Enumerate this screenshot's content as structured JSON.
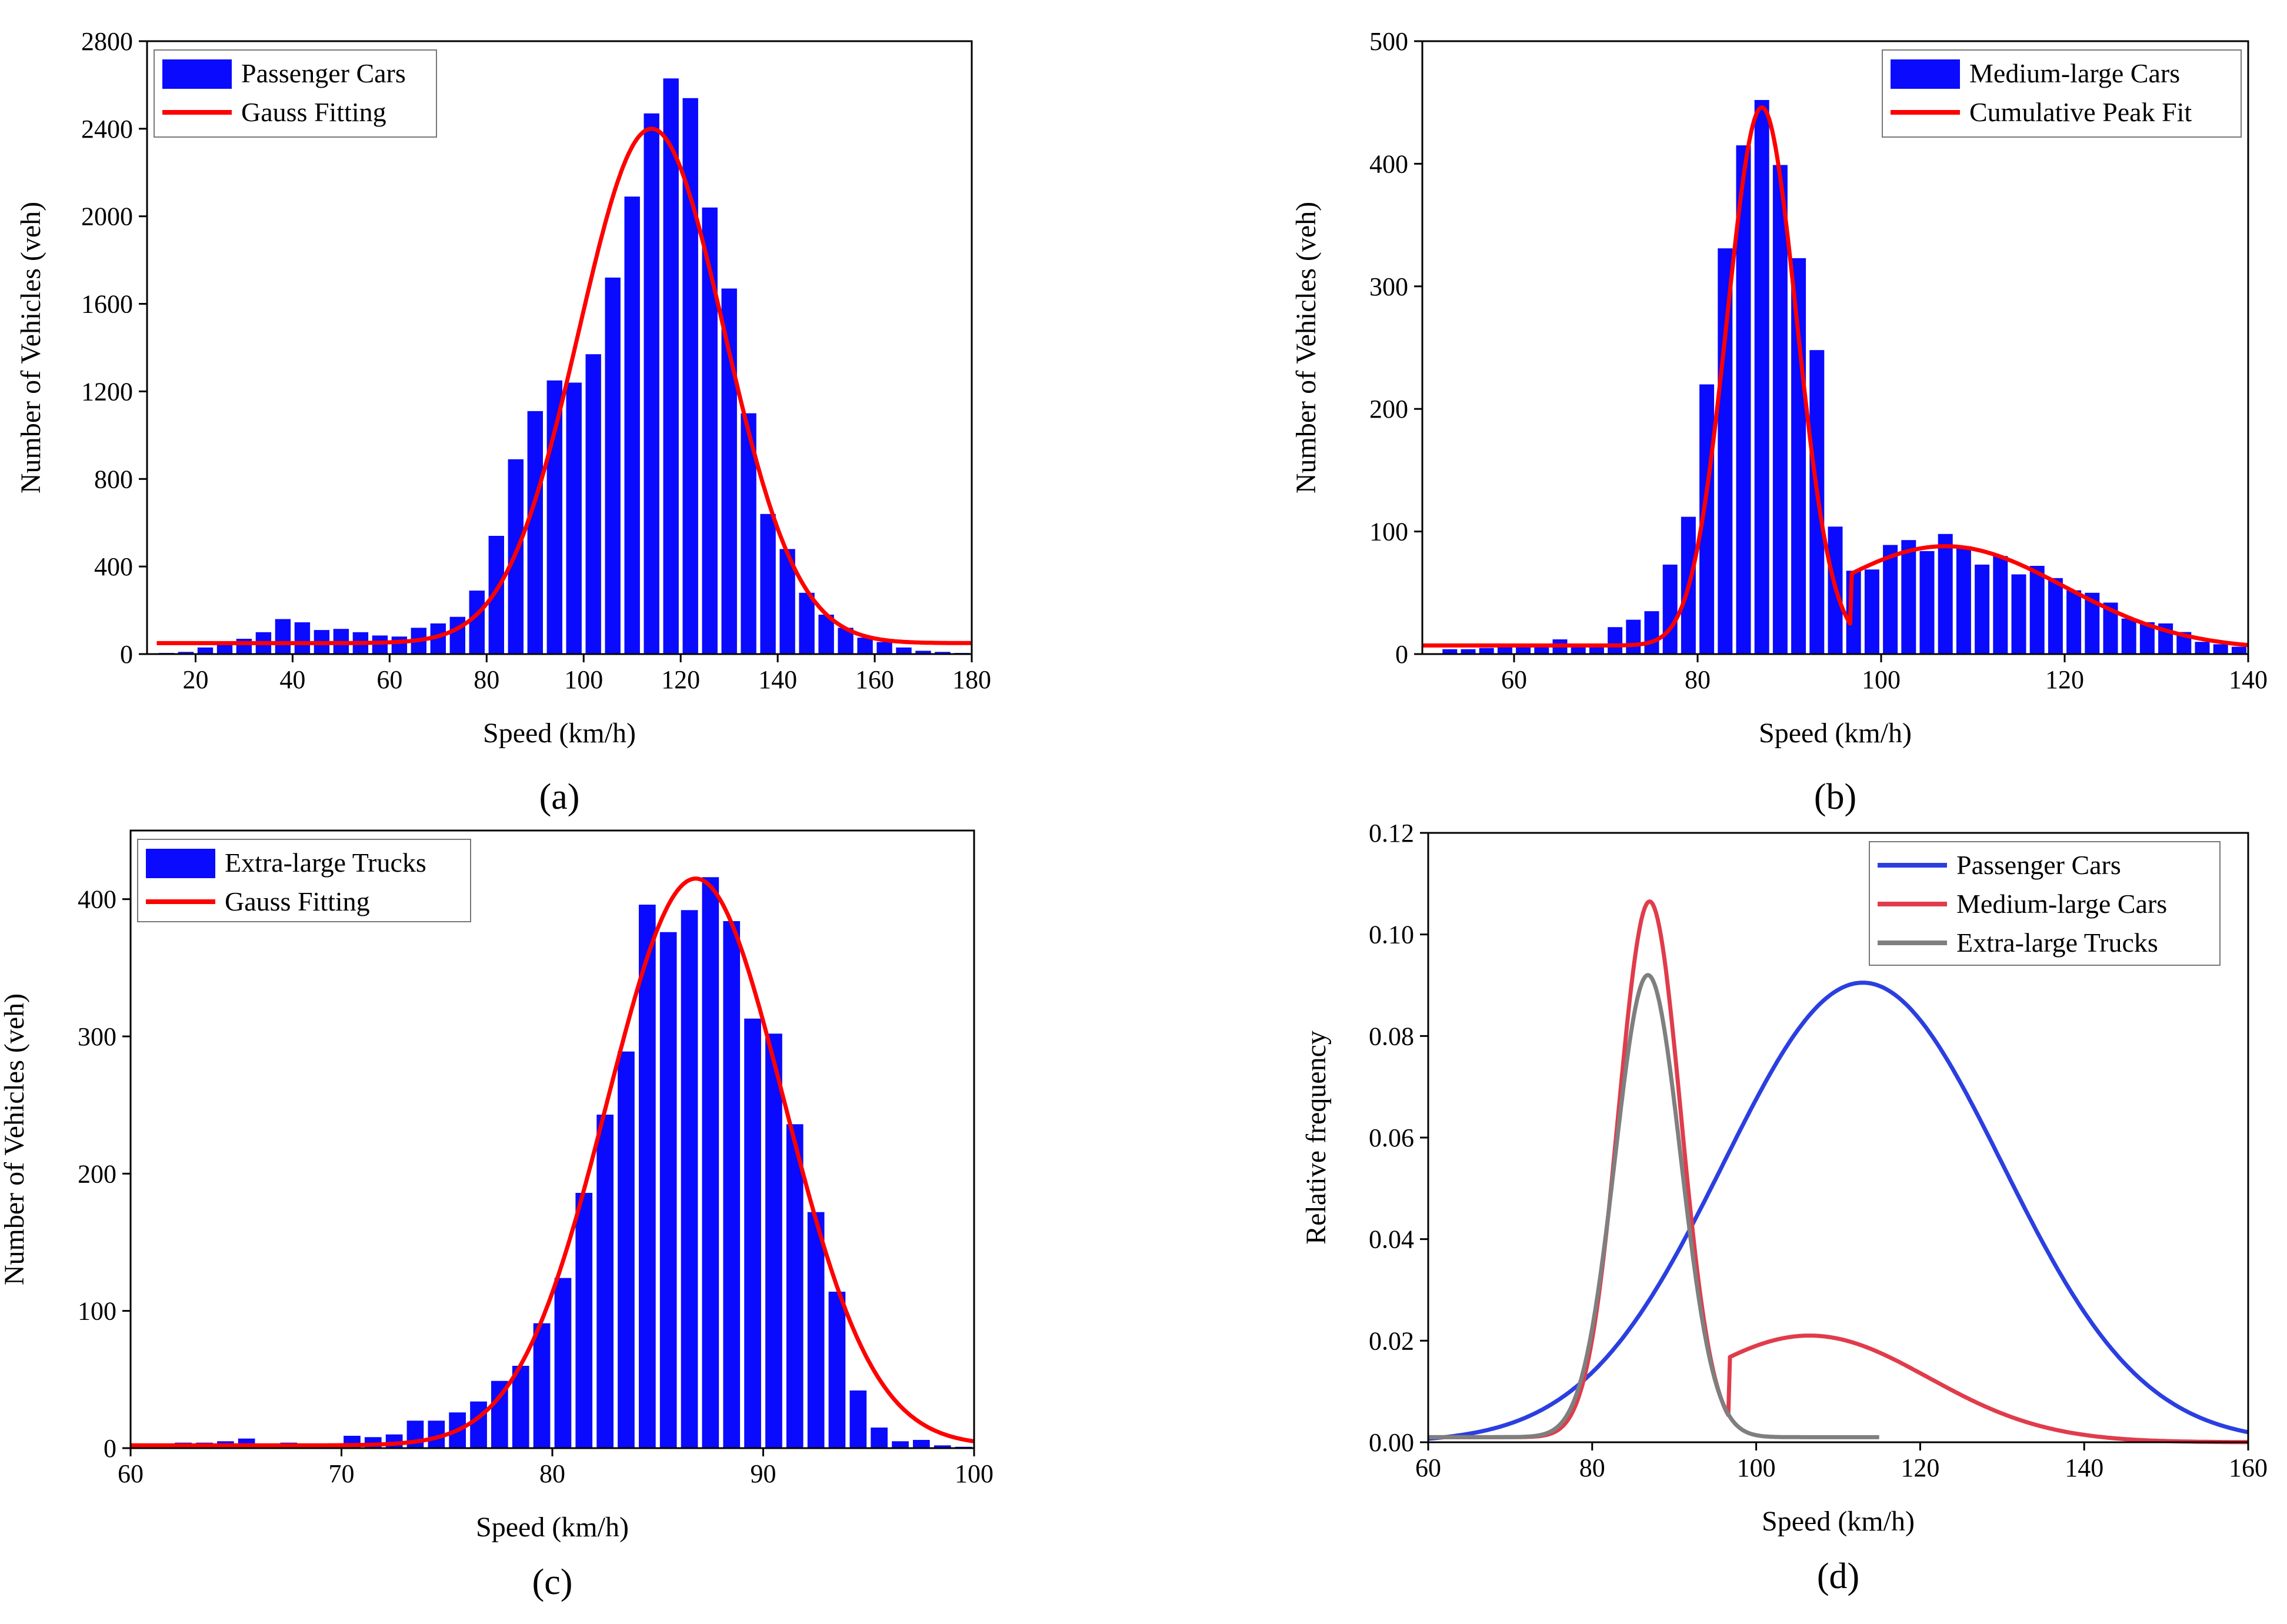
{
  "chart_data": [
    {
      "panel_label": "(a)",
      "type": "bar",
      "title": "",
      "xlabel": "Speed (km/h)",
      "ylabel": "Number of  Vehicles (veh)",
      "xlim": [
        10,
        180
      ],
      "ylim": [
        0,
        2800
      ],
      "xticks": [
        20,
        40,
        60,
        80,
        100,
        120,
        140,
        160,
        180
      ],
      "yticks": [
        0,
        400,
        800,
        1200,
        1600,
        2000,
        2400,
        2800
      ],
      "bar_width": 3.2,
      "legend": {
        "position": "top-left",
        "entries": [
          "Passenger Cars",
          "Gauss Fitting"
        ]
      },
      "series": [
        {
          "name": "Passenger Cars",
          "kind": "bar",
          "color": "#0a0aff",
          "x": [
            14,
            18,
            22,
            26,
            30,
            34,
            38,
            42,
            46,
            50,
            54,
            58,
            62,
            66,
            70,
            74,
            78,
            82,
            86,
            90,
            94,
            98,
            102,
            106,
            110,
            114,
            118,
            122,
            126,
            130,
            134,
            138,
            142,
            146,
            150,
            154,
            158,
            162,
            166,
            170,
            174,
            178
          ],
          "values": [
            5,
            10,
            30,
            55,
            70,
            100,
            160,
            145,
            110,
            115,
            100,
            85,
            80,
            120,
            140,
            170,
            290,
            540,
            890,
            1110,
            1250,
            1240,
            1370,
            1720,
            2090,
            2470,
            2630,
            2540,
            2040,
            1670,
            1100,
            640,
            480,
            280,
            180,
            120,
            75,
            55,
            30,
            15,
            10,
            5
          ]
        },
        {
          "name": "Gauss Fitting",
          "kind": "gauss",
          "color": "#ff0000",
          "baseline": 50,
          "amplitude": 2350,
          "center": 114,
          "sigma": 15,
          "x_range": [
            12,
            180
          ]
        }
      ]
    },
    {
      "panel_label": "(b)",
      "type": "bar",
      "title": "",
      "xlabel": "Speed (km/h)",
      "ylabel": "Number of  Vehicles (veh)",
      "xlim": [
        50,
        140
      ],
      "ylim": [
        0,
        500
      ],
      "xticks": [
        60,
        80,
        100,
        120,
        140
      ],
      "yticks": [
        0,
        100,
        200,
        300,
        400,
        500
      ],
      "bar_width": 1.6,
      "legend": {
        "position": "top-right",
        "entries": [
          "Medium-large Cars",
          "Cumulative Peak Fit"
        ]
      },
      "series": [
        {
          "name": "Medium-large Cars",
          "kind": "bar",
          "color": "#0a0aff",
          "x": [
            53,
            55,
            57,
            59,
            61,
            63,
            65,
            67,
            69,
            71,
            73,
            75,
            77,
            79,
            81,
            83,
            85,
            87,
            89,
            91,
            93,
            95,
            97,
            99,
            101,
            103,
            105,
            107,
            109,
            111,
            113,
            115,
            117,
            119,
            121,
            123,
            125,
            127,
            129,
            131,
            133,
            135,
            137,
            139
          ],
          "values": [
            4,
            4,
            5,
            6,
            6,
            8,
            12,
            8,
            8,
            22,
            28,
            35,
            73,
            112,
            220,
            331,
            415,
            452,
            399,
            323,
            248,
            104,
            68,
            69,
            89,
            93,
            84,
            98,
            88,
            73,
            80,
            65,
            72,
            62,
            52,
            50,
            42,
            29,
            26,
            25,
            18,
            10,
            8,
            6
          ]
        },
        {
          "name": "Cumulative Peak Fit",
          "kind": "piecewise_gauss",
          "color": "#ff0000",
          "x_break": 96.8,
          "left": {
            "baseline": 7,
            "amplitude": 439,
            "center": 87,
            "sigma": 3.8
          },
          "right": {
            "baseline": 4,
            "amplitude": 84,
            "center": 107,
            "sigma": 13
          },
          "x_range": [
            50,
            140
          ]
        }
      ]
    },
    {
      "panel_label": "(c)",
      "type": "bar",
      "title": "",
      "xlabel": "Speed (km/h)",
      "ylabel": "Number of  Vehicles (veh)",
      "xlim": [
        60,
        100
      ],
      "ylim": [
        0,
        450
      ],
      "xticks": [
        60,
        70,
        80,
        90,
        100
      ],
      "yticks": [
        0,
        100,
        200,
        300,
        400
      ],
      "bar_width": 0.8,
      "legend": {
        "position": "top-left",
        "entries": [
          "Extra-large Trucks",
          "Gauss Fitting"
        ]
      },
      "series": [
        {
          "name": "Extra-large Trucks",
          "kind": "bar",
          "color": "#0a0aff",
          "x": [
            60.5,
            61.5,
            62.5,
            63.5,
            64.5,
            65.5,
            66.5,
            67.5,
            68.5,
            69.5,
            70.5,
            71.5,
            72.5,
            73.5,
            74.5,
            75.5,
            76.5,
            77.5,
            78.5,
            79.5,
            80.5,
            81.5,
            82.5,
            83.5,
            84.5,
            85.5,
            86.5,
            87.5,
            88.5,
            89.5,
            90.5,
            91.5,
            92.5,
            93.5,
            94.5,
            95.5,
            96.5,
            97.5,
            98.5,
            99.5
          ],
          "values": [
            2,
            2,
            4,
            4,
            5,
            7,
            3,
            4,
            2,
            3,
            9,
            8,
            10,
            20,
            20,
            26,
            34,
            49,
            60,
            91,
            124,
            186,
            243,
            289,
            396,
            376,
            392,
            416,
            384,
            313,
            302,
            236,
            172,
            114,
            42,
            15,
            5,
            6,
            2,
            1
          ]
        },
        {
          "name": "Gauss Fitting",
          "kind": "gauss",
          "color": "#ff0000",
          "baseline": 2,
          "amplitude": 413,
          "center": 86.8,
          "sigma": 4.2,
          "x_range": [
            60,
            100
          ]
        }
      ]
    },
    {
      "panel_label": "(d)",
      "type": "line",
      "title": "",
      "xlabel": "Speed (km/h)",
      "ylabel": "Relative frequency",
      "xlim": [
        60,
        160
      ],
      "ylim": [
        0,
        0.12
      ],
      "xticks": [
        60,
        80,
        100,
        120,
        140,
        160
      ],
      "yticks": [
        0.0,
        0.02,
        0.04,
        0.06,
        0.08,
        0.1,
        0.12
      ],
      "ytick_labels": [
        "0.00",
        "0.02",
        "0.04",
        "0.06",
        "0.08",
        "0.10",
        "0.12"
      ],
      "legend": {
        "position": "top-right",
        "entries": [
          "Passenger Cars",
          "Medium-large Cars",
          "Extra-large Trucks"
        ]
      },
      "series": [
        {
          "name": "Passenger Cars",
          "kind": "gauss",
          "color": "#2b3fe0",
          "baseline": 0,
          "amplitude": 0.0905,
          "center": 113,
          "sigma": 17,
          "x_range": [
            60,
            160
          ]
        },
        {
          "name": "Medium-large Cars",
          "kind": "piecewise_gauss",
          "color": "#e03c4c",
          "x_break": 96.8,
          "left": {
            "baseline": 0.001,
            "amplitude": 0.1055,
            "center": 87,
            "sigma": 3.8
          },
          "right": {
            "baseline": 0,
            "amplitude": 0.021,
            "center": 106.5,
            "sigma": 14.5
          },
          "x_range": [
            60,
            160
          ]
        },
        {
          "name": "Extra-large Trucks",
          "kind": "gauss",
          "color": "#7f7f7f",
          "baseline": 0.001,
          "amplitude": 0.091,
          "center": 86.8,
          "sigma": 4.0,
          "x_range": [
            60,
            115
          ]
        }
      ]
    }
  ]
}
